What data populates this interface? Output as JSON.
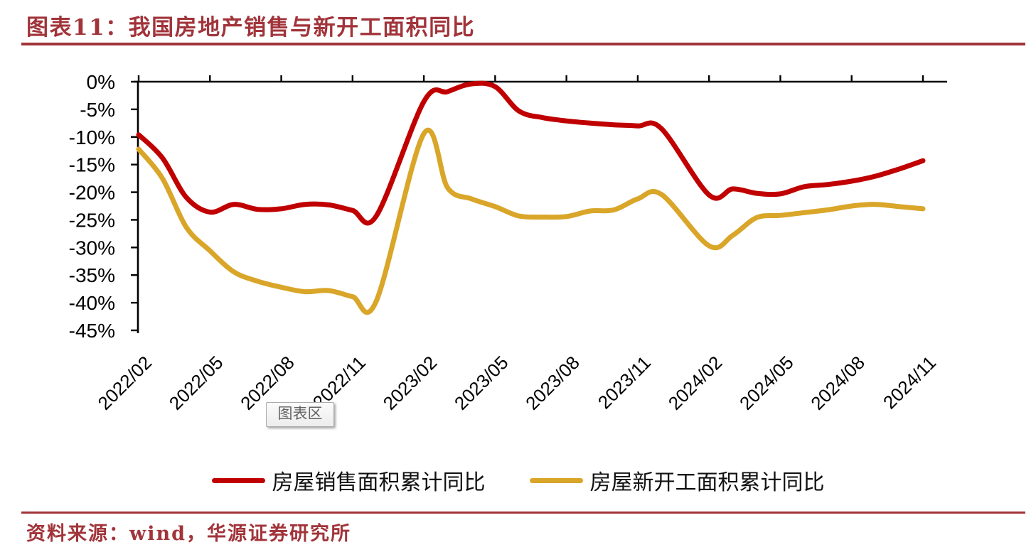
{
  "page": {
    "title": "图表11：我国房地产销售与新开工面积同比",
    "source_note": "资料来源：wind，华源证券研究所"
  },
  "tooltip": {
    "label": "图表区"
  },
  "colors": {
    "accent_red": "#A1343A",
    "series_sales_red": "#C00000",
    "series_starts_gold": "#D9A629",
    "axis_black": "#000000",
    "tooltip_text_gray": "#636363"
  },
  "legend": [
    {
      "label": "房屋销售面积累计同比",
      "color": "#C00000"
    },
    {
      "label": "房屋新开工面积累计同比",
      "color": "#D9A629"
    }
  ],
  "chart_data": {
    "type": "line",
    "title": "我国房地产销售与新开工面积同比",
    "xlabel": "",
    "ylabel": "",
    "ylim": [
      -45,
      0
    ],
    "grid": false,
    "smoothed": true,
    "legend_position": "bottom",
    "y_ticks": [
      "0%",
      "-5%",
      "-10%",
      "-15%",
      "-20%",
      "-25%",
      "-30%",
      "-35%",
      "-40%",
      "-45%"
    ],
    "x_ticks": [
      "2022/02",
      "2022/05",
      "2022/08",
      "2022/11",
      "2023/02",
      "2023/05",
      "2023/08",
      "2023/11",
      "2024/02",
      "2024/05",
      "2024/08",
      "2024/11"
    ],
    "series": [
      {
        "name": "房屋销售面积累计同比",
        "color": "#C00000",
        "x": [
          "2022/02",
          "2022/03",
          "2022/04",
          "2022/05",
          "2022/06",
          "2022/07",
          "2022/08",
          "2022/09",
          "2022/10",
          "2022/11",
          "2022/12",
          "2023/02",
          "2023/03",
          "2023/04",
          "2023/05",
          "2023/06",
          "2023/07",
          "2023/08",
          "2023/09",
          "2023/10",
          "2023/11",
          "2023/12",
          "2024/02",
          "2024/03",
          "2024/04",
          "2024/05",
          "2024/06",
          "2024/07",
          "2024/08",
          "2024/09",
          "2024/10",
          "2024/11"
        ],
        "values": [
          -9.6,
          -13.8,
          -20.9,
          -23.6,
          -22.2,
          -23.1,
          -23.0,
          -22.2,
          -22.3,
          -23.3,
          -24.3,
          -3.6,
          -1.8,
          -0.4,
          -0.9,
          -5.3,
          -6.5,
          -7.1,
          -7.5,
          -7.8,
          -8.0,
          -8.5,
          -20.5,
          -19.4,
          -20.2,
          -20.3,
          -19.0,
          -18.6,
          -18.0,
          -17.1,
          -15.8,
          -14.3
        ]
      },
      {
        "name": "房屋新开工面积累计同比",
        "color": "#D9A629",
        "x": [
          "2022/02",
          "2022/03",
          "2022/04",
          "2022/05",
          "2022/06",
          "2022/07",
          "2022/08",
          "2022/09",
          "2022/10",
          "2022/11",
          "2022/12",
          "2023/02",
          "2023/03",
          "2023/04",
          "2023/05",
          "2023/06",
          "2023/07",
          "2023/08",
          "2023/09",
          "2023/10",
          "2023/11",
          "2023/12",
          "2024/02",
          "2024/03",
          "2024/04",
          "2024/05",
          "2024/06",
          "2024/07",
          "2024/08",
          "2024/09",
          "2024/10",
          "2024/11"
        ],
        "values": [
          -12.2,
          -17.5,
          -26.3,
          -30.6,
          -34.4,
          -36.1,
          -37.2,
          -38.0,
          -37.8,
          -38.9,
          -39.7,
          -9.4,
          -19.2,
          -21.2,
          -22.6,
          -24.3,
          -24.5,
          -24.4,
          -23.4,
          -23.2,
          -21.2,
          -20.4,
          -29.7,
          -27.8,
          -24.6,
          -24.2,
          -23.7,
          -23.2,
          -22.5,
          -22.2,
          -22.6,
          -23.0
        ]
      }
    ]
  }
}
